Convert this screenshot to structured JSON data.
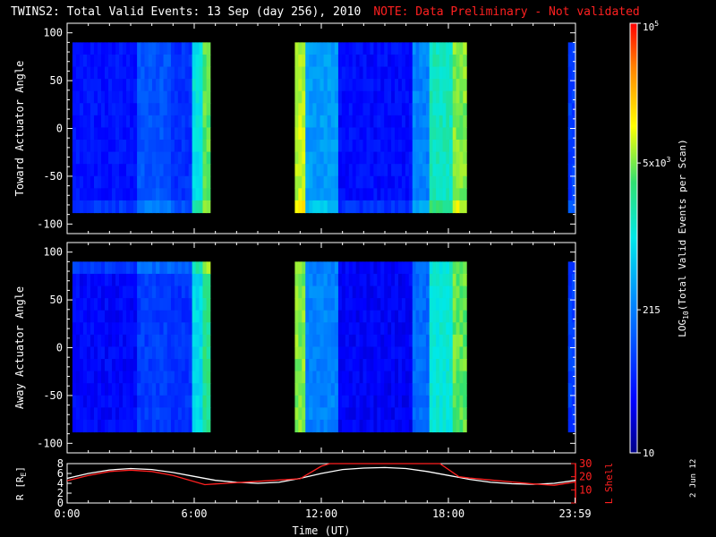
{
  "title": {
    "main": "TWINS2: Total Valid Events: 13 Sep (day 256), 2010",
    "note": "NOTE: Data Preliminary - Not validated"
  },
  "stamp": "2 Jun 12",
  "colorbar": {
    "label": "LOG10(Total Valid Events per Scan)",
    "label_prefix": "LOG",
    "label_sub": "10",
    "label_suffix": "(Total Valid Events per Scan)",
    "ticks": [
      {
        "value": 10,
        "text": "10"
      },
      {
        "value": 215,
        "text": "215"
      },
      {
        "value": 5000,
        "text": "5x10",
        "sup": "3"
      },
      {
        "value": 100000,
        "text": "10",
        "sup": "5"
      }
    ],
    "range": [
      10,
      100000
    ],
    "scale": "log"
  },
  "chart_data": [
    {
      "type": "heatmap",
      "panel": "toward",
      "ylabel": "Toward Actuator Angle",
      "ylim": [
        -110,
        110
      ],
      "yticks": [
        100,
        50,
        0,
        -50,
        -100
      ],
      "angle_range": [
        -88,
        90
      ],
      "data_intervals_hours": [
        [
          0.25,
          6.75
        ],
        [
          10.75,
          18.85
        ],
        [
          23.65,
          24.0
        ]
      ],
      "color_levels": [
        {
          "t0": 0.25,
          "t1": 3.3,
          "level": 0.15
        },
        {
          "t0": 3.3,
          "t1": 4.9,
          "level": 0.26
        },
        {
          "t0": 4.9,
          "t1": 5.9,
          "level": 0.2
        },
        {
          "t0": 5.9,
          "t1": 6.4,
          "level": 0.5
        },
        {
          "t0": 6.4,
          "t1": 6.75,
          "level": 0.65
        },
        {
          "t0": 10.75,
          "t1": 11.25,
          "level": 0.72
        },
        {
          "t0": 11.25,
          "t1": 12.8,
          "level": 0.38
        },
        {
          "t0": 12.8,
          "t1": 16.3,
          "level": 0.14
        },
        {
          "t0": 16.3,
          "t1": 17.1,
          "level": 0.34
        },
        {
          "t0": 17.1,
          "t1": 18.2,
          "level": 0.55
        },
        {
          "t0": 18.2,
          "t1": 18.85,
          "level": 0.68
        },
        {
          "t0": 23.65,
          "t1": 24.0,
          "level": 0.22
        }
      ]
    },
    {
      "type": "heatmap",
      "panel": "away",
      "ylabel": "Away Actuator Angle",
      "ylim": [
        -110,
        110
      ],
      "yticks": [
        100,
        50,
        0,
        -50,
        -100
      ],
      "angle_range": [
        -88,
        90
      ],
      "data_intervals_hours": [
        [
          0.25,
          6.75
        ],
        [
          10.75,
          18.85
        ],
        [
          23.65,
          24.0
        ]
      ],
      "color_levels": [
        {
          "t0": 0.25,
          "t1": 3.3,
          "level": 0.13
        },
        {
          "t0": 3.3,
          "t1": 4.9,
          "level": 0.22
        },
        {
          "t0": 4.9,
          "t1": 5.9,
          "level": 0.2
        },
        {
          "t0": 5.9,
          "t1": 6.4,
          "level": 0.48
        },
        {
          "t0": 6.4,
          "t1": 6.75,
          "level": 0.6
        },
        {
          "t0": 10.75,
          "t1": 11.25,
          "level": 0.68
        },
        {
          "t0": 11.25,
          "t1": 12.8,
          "level": 0.34
        },
        {
          "t0": 12.8,
          "t1": 16.3,
          "level": 0.12
        },
        {
          "t0": 16.3,
          "t1": 17.1,
          "level": 0.3
        },
        {
          "t0": 17.1,
          "t1": 18.2,
          "level": 0.52
        },
        {
          "t0": 18.2,
          "t1": 18.85,
          "level": 0.66
        },
        {
          "t0": 23.65,
          "t1": 24.0,
          "level": 0.22
        }
      ]
    },
    {
      "type": "line",
      "panel": "orbit",
      "xlabel": "Time (UT)",
      "xlim": [
        0,
        24
      ],
      "xticks": [
        {
          "value": 0,
          "text": "0:00"
        },
        {
          "value": 6,
          "text": "6:00"
        },
        {
          "value": 12,
          "text": "12:00"
        },
        {
          "value": 18,
          "text": "18:00"
        },
        {
          "value": 23.98,
          "text": "23:59"
        }
      ],
      "ylabel_left": "R [RE]",
      "ylabel_left_base": "R [R",
      "ylabel_left_sub": "E",
      "ylim_left": [
        0,
        8
      ],
      "yticks_left": [
        0,
        2,
        4,
        6,
        8
      ],
      "ylabel_right": "L Shell",
      "ylim_right": [
        0,
        30
      ],
      "yticks_right": [
        10,
        20,
        30
      ],
      "series": [
        {
          "name": "R [RE]",
          "color": "#ffffff",
          "axis": "left",
          "x": [
            0,
            1,
            2,
            3,
            4,
            5,
            6,
            7,
            8,
            9,
            10,
            11,
            12,
            13,
            14,
            15,
            16,
            17,
            18,
            19,
            20,
            21,
            22,
            23,
            24
          ],
          "y": [
            5.0,
            6.0,
            6.7,
            7.0,
            6.8,
            6.2,
            5.4,
            4.6,
            4.2,
            4.0,
            4.2,
            5.0,
            6.0,
            6.8,
            7.1,
            7.2,
            7.0,
            6.4,
            5.6,
            4.8,
            4.2,
            3.9,
            3.8,
            4.0,
            4.6
          ]
        },
        {
          "name": "L Shell",
          "color": "#ff2020",
          "axis": "right",
          "x": [
            0,
            1,
            2,
            3,
            4,
            5,
            6.5,
            7,
            8,
            9,
            10,
            11,
            12,
            12.4,
            17.6,
            18.5,
            19,
            20,
            21,
            22,
            23,
            24
          ],
          "y": [
            17,
            21,
            24,
            25,
            24,
            21,
            14,
            14.5,
            15.5,
            16.5,
            17.5,
            18.5,
            28,
            30,
            30,
            20,
            19,
            17.5,
            16,
            14.5,
            13.5,
            16
          ]
        }
      ]
    }
  ]
}
